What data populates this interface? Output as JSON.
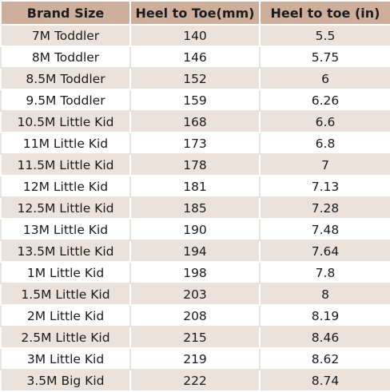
{
  "table": {
    "headers": [
      "Brand Size",
      "Heel to Toe(mm)",
      "Heel to toe (in)"
    ],
    "rows": [
      [
        "7M Toddler",
        "140",
        "5.5"
      ],
      [
        "8M Toddler",
        "146",
        "5.75"
      ],
      [
        "8.5M Toddler",
        "152",
        "6"
      ],
      [
        "9.5M Toddler",
        "159",
        "6.26"
      ],
      [
        "10.5M Little Kid",
        "168",
        "6.6"
      ],
      [
        "11M Little Kid",
        "173",
        "6.8"
      ],
      [
        "11.5M Little Kid",
        "178",
        "7"
      ],
      [
        "12M Little Kid",
        "181",
        "7.13"
      ],
      [
        "12.5M Little Kid",
        "185",
        "7.28"
      ],
      [
        "13M Little Kid",
        "190",
        "7.48"
      ],
      [
        "13.5M Little Kid",
        "194",
        "7.64"
      ],
      [
        "1M Little Kid",
        "198",
        "7.8"
      ],
      [
        "1.5M Little Kid",
        "203",
        "8"
      ],
      [
        "2M Little Kid",
        "208",
        "8.19"
      ],
      [
        "2.5M Little Kid",
        "215",
        "8.46"
      ],
      [
        "3M Little Kid",
        "219",
        "8.62"
      ],
      [
        "3.5M Big Kid",
        "222",
        "8.74"
      ]
    ]
  },
  "colors": {
    "header_bg": "#cdaf9c",
    "stripe_bg": "#ece2dc",
    "plain_bg": "#ffffff",
    "text": "#1a1a1a"
  }
}
